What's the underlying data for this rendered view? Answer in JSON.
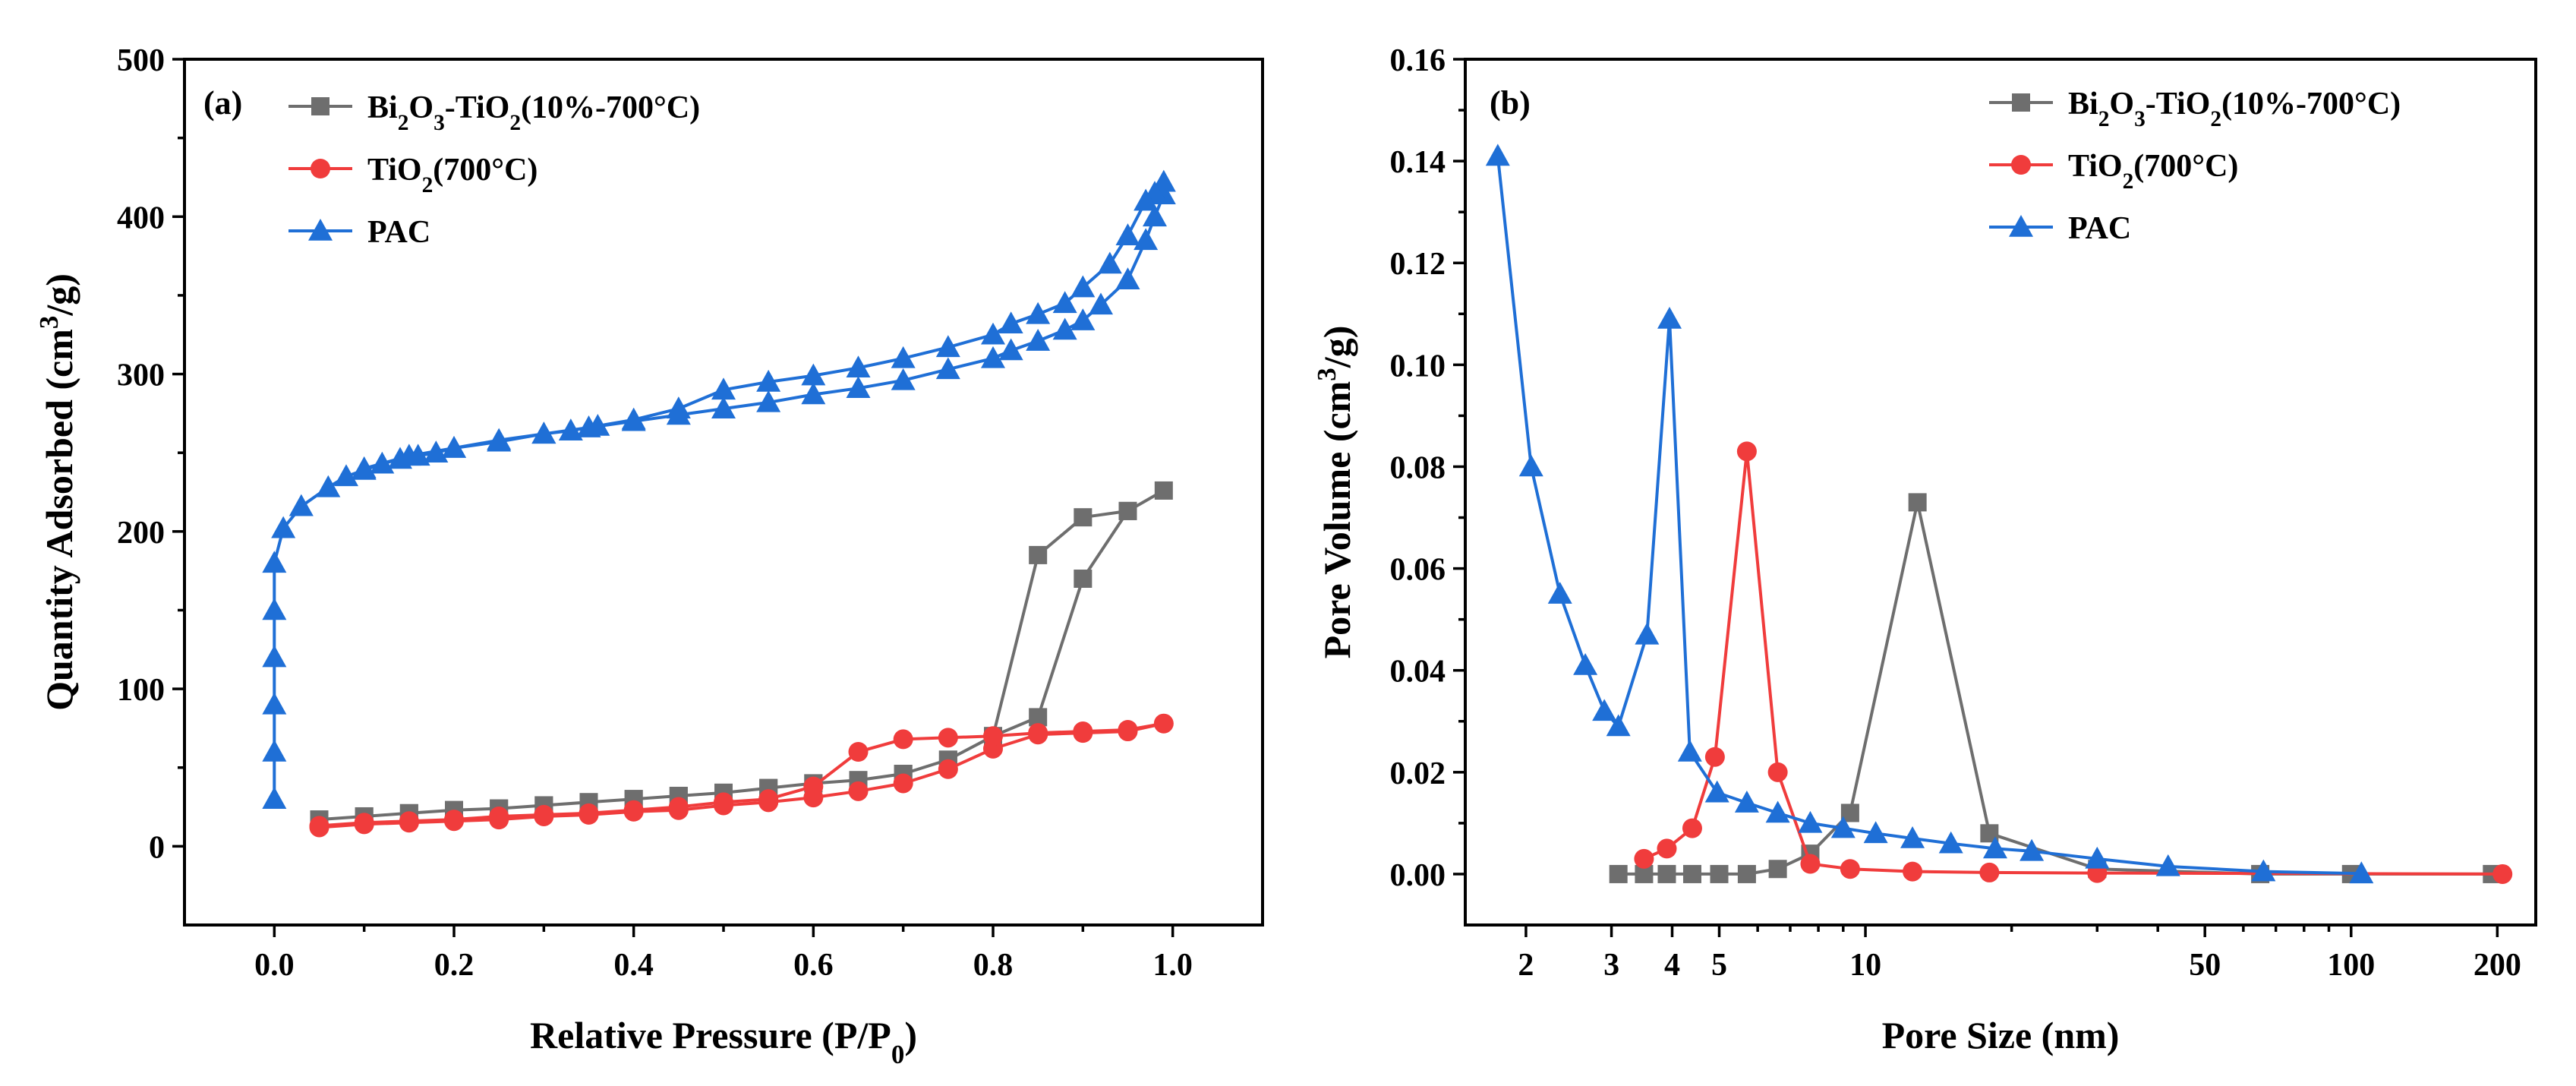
{
  "chart_data": [
    {
      "type": "line",
      "panel_label": "(a)",
      "title": "",
      "xlabel": "Relative Pressure (P/P",
      "xlabel_sub": "0",
      "xlabel_suffix": ")",
      "ylabel": "Quantity Adsorbed (cm",
      "ylabel_sup": "3",
      "ylabel_suffix": "/g)",
      "xlim": [
        -0.1,
        1.1
      ],
      "ylim": [
        -50,
        500
      ],
      "xticks": [
        0.0,
        0.2,
        0.4,
        0.6,
        0.8,
        1.0
      ],
      "xtick_labels": [
        "0.0",
        "0.2",
        "0.4",
        "0.6",
        "0.8",
        "1.0"
      ],
      "yticks": [
        0,
        100,
        200,
        300,
        400,
        500
      ],
      "ytick_labels": [
        "0",
        "100",
        "200",
        "300",
        "400",
        "500"
      ],
      "legend_position": "top-left",
      "grid": false,
      "series": [
        {
          "name": "Bi2O3-TiO2(10%-700°C)",
          "legend_parts": [
            "Bi",
            "2",
            "O",
            "3",
            "-TiO",
            "2",
            "(10%-700°C)"
          ],
          "color": "#6e6e6e",
          "marker": "square",
          "x": [
            0.05,
            0.1,
            0.15,
            0.2,
            0.25,
            0.3,
            0.35,
            0.4,
            0.45,
            0.5,
            0.55,
            0.6,
            0.65,
            0.7,
            0.75,
            0.8,
            0.85,
            0.9,
            0.95,
            0.99,
            0.95,
            0.9,
            0.85,
            0.8,
            0.75,
            0.7,
            0.65,
            0.6,
            0.55,
            0.5,
            0.45,
            0.4,
            0.35,
            0.3,
            0.25,
            0.2,
            0.15,
            0.1,
            0.05
          ],
          "y": [
            17,
            19,
            21,
            23,
            24,
            26,
            28,
            30,
            32,
            34,
            37,
            40,
            42,
            46,
            55,
            70,
            82,
            170,
            213,
            226,
            213,
            209,
            185,
            70,
            55,
            46,
            42,
            40,
            37,
            34,
            32,
            30,
            28,
            26,
            24,
            23,
            21,
            19,
            17
          ]
        },
        {
          "name": "TiO2(700°C)",
          "legend_parts": [
            "TiO",
            "2",
            "(700°C)"
          ],
          "color": "#f03c3c",
          "marker": "circle",
          "x": [
            0.05,
            0.1,
            0.15,
            0.2,
            0.25,
            0.3,
            0.35,
            0.4,
            0.45,
            0.5,
            0.55,
            0.6,
            0.65,
            0.7,
            0.75,
            0.8,
            0.85,
            0.9,
            0.95,
            0.99,
            0.95,
            0.9,
            0.85,
            0.8,
            0.75,
            0.7,
            0.65,
            0.6,
            0.55,
            0.5,
            0.45,
            0.4,
            0.35,
            0.3,
            0.25,
            0.2,
            0.15,
            0.1,
            0.05
          ],
          "y": [
            12,
            14,
            15,
            16,
            17,
            19,
            20,
            22,
            23,
            26,
            28,
            31,
            35,
            40,
            49,
            62,
            71,
            72,
            73,
            78,
            74,
            73,
            72,
            70,
            69,
            68,
            60,
            38,
            30,
            28,
            25,
            23,
            21,
            20,
            19,
            17,
            16,
            15,
            13
          ]
        },
        {
          "name": "PAC",
          "legend_parts": [
            "PAC"
          ],
          "color": "#1f6fd6",
          "marker": "triangle",
          "x": [
            0.0,
            0.0,
            0.0,
            0.0,
            0.0,
            0.0,
            0.01,
            0.03,
            0.06,
            0.08,
            0.1,
            0.12,
            0.14,
            0.16,
            0.18,
            0.2,
            0.25,
            0.3,
            0.35,
            0.4,
            0.45,
            0.5,
            0.55,
            0.6,
            0.65,
            0.7,
            0.75,
            0.8,
            0.82,
            0.85,
            0.88,
            0.9,
            0.92,
            0.95,
            0.97,
            0.98,
            0.99,
            0.99,
            0.98,
            0.97,
            0.95,
            0.93,
            0.9,
            0.88,
            0.85,
            0.82,
            0.8,
            0.75,
            0.7,
            0.65,
            0.6,
            0.55,
            0.5,
            0.45,
            0.4,
            0.36,
            0.33,
            0.3,
            0.25,
            0.2,
            0.15,
            0.1
          ],
          "y": [
            30,
            60,
            90,
            120,
            150,
            180,
            202,
            216,
            228,
            235,
            239,
            243,
            246,
            248,
            250,
            253,
            257,
            262,
            266,
            270,
            274,
            278,
            282,
            287,
            291,
            296,
            303,
            310,
            315,
            321,
            328,
            334,
            344,
            360,
            385,
            400,
            414,
            422,
            415,
            410,
            388,
            370,
            355,
            345,
            338,
            332,
            325,
            317,
            310,
            304,
            299,
            295,
            290,
            278,
            271,
            267,
            264,
            262,
            258,
            253,
            248,
            240
          ]
        }
      ]
    },
    {
      "type": "line",
      "panel_label": "(b)",
      "title": "",
      "xlabel": "Pore Size (nm)",
      "ylabel": "Pore Volume (cm",
      "ylabel_sup": "3",
      "ylabel_suffix": "/g)",
      "xscale": "log",
      "xlim": [
        1.5,
        240
      ],
      "ylim": [
        -0.01,
        0.16
      ],
      "xticks": [
        2,
        3,
        4,
        5,
        10,
        50,
        100,
        200
      ],
      "xtick_labels": [
        "2",
        "3",
        "4",
        "5",
        "10",
        "50",
        "100",
        "200"
      ],
      "yticks": [
        0.0,
        0.02,
        0.04,
        0.06,
        0.08,
        0.1,
        0.12,
        0.14,
        0.16
      ],
      "ytick_labels": [
        "0.00",
        "0.02",
        "0.04",
        "0.06",
        "0.08",
        "0.10",
        "0.12",
        "0.14",
        "0.16"
      ],
      "legend_position": "top-right",
      "grid": false,
      "series": [
        {
          "name": "Bi2O3-TiO2(10%-700°C)",
          "legend_parts": [
            "Bi",
            "2",
            "O",
            "3",
            "-TiO",
            "2",
            "(10%-700°C)"
          ],
          "color": "#6e6e6e",
          "marker": "square",
          "x": [
            3.1,
            3.5,
            3.9,
            4.4,
            5.0,
            5.7,
            6.6,
            7.7,
            9.3,
            12.8,
            18.0,
            30.0,
            65.0,
            100.0,
            195.0
          ],
          "y": [
            0.0,
            0.0,
            0.0,
            0.0,
            0.0,
            0.0,
            0.001,
            0.004,
            0.012,
            0.073,
            0.008,
            0.001,
            0.0,
            0.0,
            0.0
          ]
        },
        {
          "name": "TiO2(700°C)",
          "legend_parts": [
            "TiO",
            "2",
            "(700°C)"
          ],
          "color": "#f03c3c",
          "marker": "circle",
          "x": [
            3.5,
            3.9,
            4.4,
            4.9,
            5.7,
            6.6,
            7.7,
            9.3,
            12.5,
            18.0,
            30.0,
            205.0
          ],
          "y": [
            0.003,
            0.005,
            0.009,
            0.023,
            0.083,
            0.02,
            0.002,
            0.001,
            0.0005,
            0.0003,
            0.0002,
            0.0
          ]
        },
        {
          "name": "PAC",
          "legend_parts": [
            "PAC"
          ],
          "color": "#1f6fd6",
          "marker": "triangle",
          "x": [
            1.75,
            2.05,
            2.35,
            2.65,
            2.9,
            3.1,
            3.55,
            3.95,
            4.35,
            4.95,
            5.7,
            6.6,
            7.7,
            9.0,
            10.5,
            12.5,
            15.0,
            18.5,
            22.0,
            30.0,
            42.0,
            66.0,
            105.0
          ],
          "y": [
            0.141,
            0.08,
            0.055,
            0.041,
            0.032,
            0.029,
            0.047,
            0.109,
            0.024,
            0.016,
            0.014,
            0.012,
            0.01,
            0.009,
            0.008,
            0.007,
            0.006,
            0.005,
            0.0045,
            0.003,
            0.0015,
            0.0005,
            0.0001
          ]
        }
      ]
    }
  ]
}
